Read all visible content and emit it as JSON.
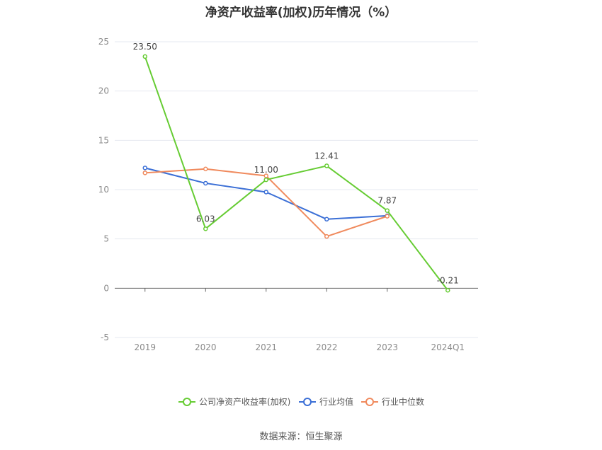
{
  "chart_data": {
    "type": "line",
    "title": "净资产收益率(加权)历年情况（%）",
    "categories": [
      "2019",
      "2020",
      "2021",
      "2022",
      "2023",
      "2024Q1"
    ],
    "ylim": [
      -5,
      25
    ],
    "yticks": [
      25,
      20,
      15,
      10,
      5,
      0,
      -5
    ],
    "grid": true,
    "legend_position": "bottom",
    "series": [
      {
        "name": "公司净资产收益率(加权)",
        "color": "#66cc33",
        "values": [
          23.5,
          6.03,
          11.0,
          12.41,
          7.87,
          -0.21
        ],
        "labels": [
          "23.50",
          "6.03",
          "11.00",
          "12.41",
          "7.87",
          "-0.21"
        ]
      },
      {
        "name": "行业均值",
        "color": "#3b6fd6",
        "values": [
          12.2,
          10.65,
          9.75,
          7.0,
          7.35,
          null
        ]
      },
      {
        "name": "行业中位数",
        "color": "#f08a5d",
        "values": [
          11.7,
          12.1,
          11.4,
          5.25,
          7.3,
          null
        ]
      }
    ]
  },
  "source": "数据来源：恒生聚源"
}
